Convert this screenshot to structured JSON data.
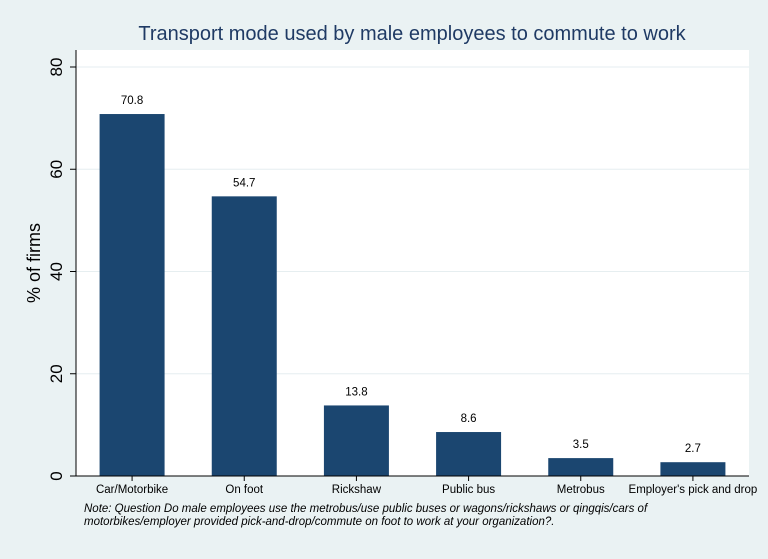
{
  "chart_data": {
    "type": "bar",
    "title": "Transport mode used by male employees to commute to work",
    "xlabel": "",
    "ylabel": "% of firms",
    "categories": [
      "Car/Motorbike",
      "On foot",
      "Rickshaw",
      "Public bus",
      "Metrobus",
      "Employer's pick and drop"
    ],
    "values": [
      70.8,
      54.7,
      13.8,
      8.6,
      3.5,
      2.7
    ],
    "value_labels": [
      "70.8",
      "54.7",
      "13.8",
      "8.6",
      "3.5",
      "2.7"
    ],
    "ylim": [
      0,
      80
    ],
    "yticks": [
      0,
      20,
      40,
      60,
      80
    ],
    "grid": true,
    "bar_color": "#1b4670",
    "background": "#eaf2f3",
    "plot_background": "#ffffff",
    "title_color": "#1f3a64"
  },
  "note": "Note: Question Do male employees use the metrobus/use public buses or wagons/rickshaws or qingqis/cars of motorbikes/employer provided pick-and-drop/commute on foot to work at your organization?."
}
